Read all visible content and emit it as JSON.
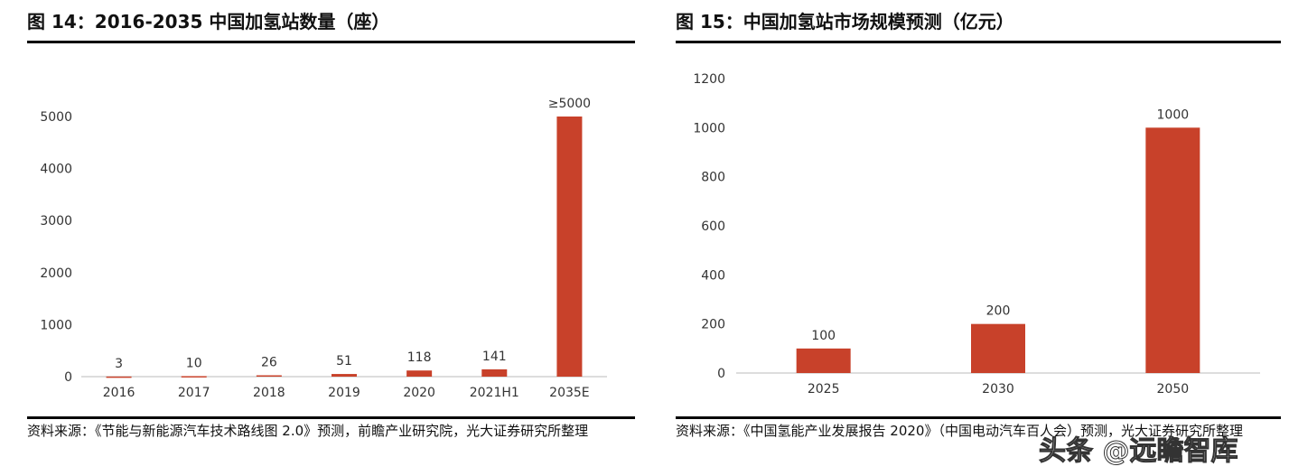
{
  "chart_data": [
    {
      "type": "bar",
      "title": "图 14：2016-2035 中国加氢站数量（座）",
      "categories": [
        "2016",
        "2017",
        "2018",
        "2019",
        "2020",
        "2021H1",
        "2035E"
      ],
      "values": [
        3,
        10,
        26,
        51,
        118,
        141,
        5000
      ],
      "data_labels": [
        "3",
        "10",
        "26",
        "51",
        "118",
        "141",
        "≥5000"
      ],
      "ylim": [
        0,
        5000
      ],
      "yticks": [
        0,
        1000,
        2000,
        3000,
        4000,
        5000
      ],
      "grid": false,
      "color": "#c8412a",
      "source": "资料来源：《节能与新能源汽车技术路线图 2.0》预测，前瞻产业研究院，光大证券研究所整理"
    },
    {
      "type": "bar",
      "title": "图 15：中国加氢站市场规模预测（亿元）",
      "categories": [
        "2025",
        "2030",
        "2050"
      ],
      "values": [
        100,
        200,
        1000
      ],
      "data_labels": [
        "100",
        "200",
        "1000"
      ],
      "ylim": [
        0,
        1200
      ],
      "yticks": [
        0,
        200,
        400,
        600,
        800,
        1000,
        1200
      ],
      "grid": false,
      "color": "#c8412a",
      "source": "资料来源：《中国氢能产业发展报告 2020》（中国电动汽车百人会）预测，光大证券研究所整理"
    }
  ],
  "watermark": "头条 @远瞻智库"
}
